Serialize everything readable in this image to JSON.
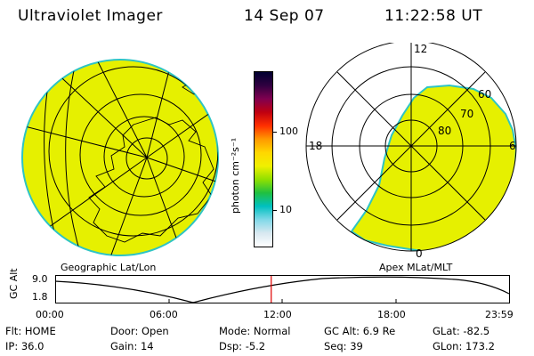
{
  "header": {
    "instrument": "Ultraviolet Imager",
    "date": "14 Sep 07",
    "time": "11:22:58 UT"
  },
  "colors": {
    "aurora_fill": "#e6f000",
    "aurora_edge": "#2ec4c4",
    "timeline_marker": "#e00000"
  },
  "colorbar": {
    "label": "photon cm⁻²s⁻¹",
    "ticks": [
      "100",
      "10"
    ],
    "stops": [
      "#000030",
      "#300040",
      "#800050",
      "#c00010",
      "#ff3000",
      "#ff9900",
      "#ffd700",
      "#f0f000",
      "#90e000",
      "#20c040",
      "#00c0c0",
      "#80d8e8",
      "#d8e8f0",
      "#ffffff"
    ]
  },
  "geo_panel": {
    "label": "Geographic Lat/Lon"
  },
  "polar_panel": {
    "label": "Apex MLat/MLT",
    "mlt_labels": {
      "top": "12",
      "left": "18",
      "right": "6",
      "bottom": "0"
    },
    "lat_labels": [
      "60",
      "70",
      "80"
    ]
  },
  "timeline": {
    "axis_label": "GC Alt",
    "y_ticks": [
      "9.0",
      "1.8"
    ],
    "x_ticks": [
      "00:00",
      "06:00",
      "12:00",
      "18:00",
      "23:59"
    ],
    "current_time_fraction": 0.475
  },
  "status": {
    "row1": [
      {
        "label": "Flt:",
        "value": "HOME"
      },
      {
        "label": "Door:",
        "value": "Open"
      },
      {
        "label": "Mode:",
        "value": "Normal"
      },
      {
        "label": "GC Alt:",
        "value": "6.9 Re"
      },
      {
        "label": "GLat:",
        "value": "-82.5"
      }
    ],
    "row2": [
      {
        "label": "IP:",
        "value": "36.0"
      },
      {
        "label": "Gain:",
        "value": "14"
      },
      {
        "label": "Dsp:",
        "value": "-5.2"
      },
      {
        "label": "Seq:",
        "value": "39"
      },
      {
        "label": "GLon:",
        "value": "173.2"
      }
    ]
  }
}
